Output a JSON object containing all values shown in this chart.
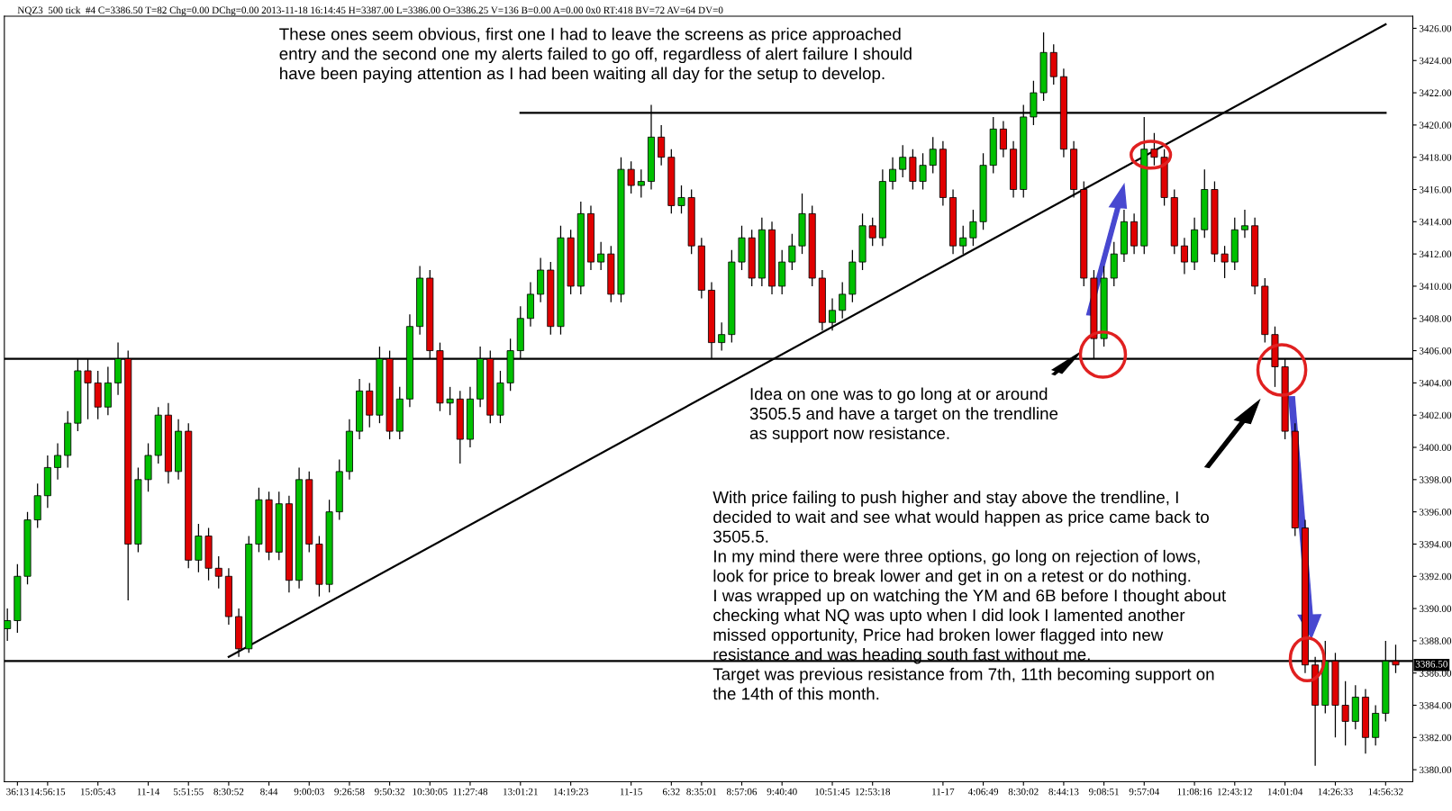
{
  "chart_data": {
    "type": "candlestick",
    "title": "NQZ3  500 tick  #4 C=3386.50 T=82 Chg=0.00 DChg=0.00 2013-11-18 16:14:45 H=3387.00 L=3386.00 O=3386.25 V=136 B=0.00 A=0.00 0x0 RT:418 BV=72 AV=64 DV=0",
    "categories": [
      null,
      "36:13",
      null,
      null,
      "14:56:15",
      null,
      null,
      null,
      null,
      "15:05:43",
      null,
      null,
      null,
      null,
      "11-14",
      null,
      null,
      null,
      "5:51:55",
      null,
      null,
      null,
      "8:30:52",
      null,
      null,
      null,
      "8:44",
      null,
      null,
      null,
      "9:00:03",
      null,
      null,
      null,
      "9:26:58",
      null,
      null,
      null,
      "9:50:32",
      null,
      null,
      null,
      "10:30:05",
      null,
      null,
      null,
      "11:27:48",
      null,
      null,
      null,
      null,
      "13:01:21",
      null,
      null,
      null,
      null,
      "14:19:23",
      null,
      null,
      null,
      null,
      null,
      "11-15",
      null,
      null,
      null,
      "6:32",
      null,
      null,
      "8:35:01",
      null,
      null,
      null,
      "8:57:06",
      null,
      null,
      null,
      "9:40:40",
      null,
      null,
      null,
      null,
      "10:51:45",
      null,
      null,
      null,
      "12:53:18",
      null,
      null,
      null,
      null,
      null,
      null,
      "11-17",
      null,
      null,
      null,
      "4:06:49",
      null,
      null,
      null,
      "8:30:02",
      null,
      null,
      null,
      "8:44:13",
      null,
      null,
      null,
      "9:08:51",
      null,
      null,
      null,
      "9:57:04",
      null,
      null,
      null,
      null,
      "11:08:16",
      null,
      null,
      null,
      "12:43:12",
      null,
      null,
      null,
      null,
      "14:01:04",
      null,
      null,
      null,
      null,
      "14:26:33",
      null,
      null,
      null,
      null,
      "14:56:32",
      null
    ],
    "ohlc": [
      [
        3388.75,
        3390,
        3388,
        3389.25
      ],
      [
        3389.25,
        3392.75,
        3388.5,
        3392
      ],
      [
        3392,
        3396,
        3391.5,
        3395.5
      ],
      [
        3395.5,
        3397.75,
        3395,
        3397
      ],
      [
        3397,
        3399.5,
        3396.25,
        3398.75
      ],
      [
        3398.75,
        3400.25,
        3398,
        3399.5
      ],
      [
        3399.5,
        3402.25,
        3398.75,
        3401.5
      ],
      [
        3401.5,
        3405.5,
        3401,
        3404.75
      ],
      [
        3404.75,
        3405.5,
        3401.75,
        3404
      ],
      [
        3404,
        3404.75,
        3401.75,
        3402.5
      ],
      [
        3402.5,
        3405,
        3402,
        3404
      ],
      [
        3404,
        3406.5,
        3403.25,
        3405.5
      ],
      [
        3405.5,
        3406,
        3390.5,
        3394
      ],
      [
        3394,
        3398.75,
        3393.5,
        3398
      ],
      [
        3398,
        3400.25,
        3397.25,
        3399.5
      ],
      [
        3399.5,
        3402.5,
        3399,
        3402
      ],
      [
        3402,
        3402.75,
        3397.75,
        3398.5
      ],
      [
        3398.5,
        3401.75,
        3398,
        3401
      ],
      [
        3401,
        3401.5,
        3392.5,
        3393
      ],
      [
        3393,
        3395.25,
        3392.25,
        3394.5
      ],
      [
        3394.5,
        3395,
        3391.75,
        3392.5
      ],
      [
        3392.5,
        3393.25,
        3391.25,
        3392
      ],
      [
        3392,
        3392.5,
        3389,
        3389.5
      ],
      [
        3389.5,
        3390,
        3387,
        3387.5
      ],
      [
        3387.5,
        3394.5,
        3387.25,
        3394
      ],
      [
        3394,
        3397.5,
        3393.5,
        3396.75
      ],
      [
        3396.75,
        3397.25,
        3393,
        3393.5
      ],
      [
        3393.5,
        3397.25,
        3393,
        3396.5
      ],
      [
        3396.5,
        3397,
        3391,
        3391.75
      ],
      [
        3391.75,
        3398.75,
        3391.25,
        3398
      ],
      [
        3398,
        3398.5,
        3393.5,
        3394
      ],
      [
        3394,
        3394.5,
        3390.75,
        3391.5
      ],
      [
        3391.5,
        3396.75,
        3391,
        3396
      ],
      [
        3396,
        3399.25,
        3395.5,
        3398.5
      ],
      [
        3398.5,
        3401.75,
        3398,
        3401
      ],
      [
        3401,
        3404.25,
        3400.5,
        3403.5
      ],
      [
        3403.5,
        3404,
        3401.25,
        3402
      ],
      [
        3402,
        3406.25,
        3401.5,
        3405.5
      ],
      [
        3405.5,
        3406,
        3400.5,
        3401
      ],
      [
        3401,
        3403.75,
        3400.5,
        3403
      ],
      [
        3403,
        3408.25,
        3402.5,
        3407.5
      ],
      [
        3407.5,
        3411.25,
        3407,
        3410.5
      ],
      [
        3410.5,
        3411,
        3405.5,
        3406
      ],
      [
        3406,
        3406.5,
        3402.25,
        3402.75
      ],
      [
        3402.75,
        3403.75,
        3402,
        3403
      ],
      [
        3403,
        3403.5,
        3399,
        3400.5
      ],
      [
        3400.5,
        3403.75,
        3400,
        3403
      ],
      [
        3403,
        3406.25,
        3402.5,
        3405.5
      ],
      [
        3405.5,
        3406,
        3401.5,
        3402
      ],
      [
        3402,
        3404.75,
        3401.5,
        3404
      ],
      [
        3404,
        3406.75,
        3403.5,
        3406
      ],
      [
        3406,
        3408.75,
        3405.5,
        3408
      ],
      [
        3408,
        3410.25,
        3407.5,
        3409.5
      ],
      [
        3409.5,
        3411.75,
        3409,
        3411
      ],
      [
        3411,
        3411.5,
        3407,
        3407.5
      ],
      [
        3407.5,
        3413.75,
        3407,
        3413
      ],
      [
        3413,
        3413.5,
        3409.5,
        3410
      ],
      [
        3410,
        3415.25,
        3409.5,
        3414.5
      ],
      [
        3414.5,
        3415,
        3411,
        3411.5
      ],
      [
        3411.5,
        3412.75,
        3411,
        3412
      ],
      [
        3412,
        3412.5,
        3409,
        3409.5
      ],
      [
        3409.5,
        3418,
        3409,
        3417.25
      ],
      [
        3417.25,
        3417.75,
        3415.75,
        3416.25
      ],
      [
        3416.25,
        3417.25,
        3415.5,
        3416.5
      ],
      [
        3416.5,
        3421.25,
        3416,
        3419.25
      ],
      [
        3419.25,
        3420,
        3417.5,
        3418
      ],
      [
        3418,
        3418.5,
        3414.5,
        3415
      ],
      [
        3415,
        3416.25,
        3414.5,
        3415.5
      ],
      [
        3415.5,
        3416,
        3412,
        3412.5
      ],
      [
        3412.5,
        3413,
        3409.25,
        3409.75
      ],
      [
        3409.75,
        3410.25,
        3405.5,
        3406.5
      ],
      [
        3406.5,
        3407.75,
        3406,
        3407
      ],
      [
        3407,
        3412.25,
        3406.5,
        3411.5
      ],
      [
        3411.5,
        3413.75,
        3411,
        3413
      ],
      [
        3413,
        3413.5,
        3410,
        3410.5
      ],
      [
        3410.5,
        3414.25,
        3410,
        3413.5
      ],
      [
        3413.5,
        3414,
        3409.5,
        3410
      ],
      [
        3410,
        3412.25,
        3409.5,
        3411.5
      ],
      [
        3411.5,
        3413.25,
        3411,
        3412.5
      ],
      [
        3412.5,
        3415.75,
        3412,
        3414.5
      ],
      [
        3414.5,
        3415,
        3410,
        3410.5
      ],
      [
        3410.5,
        3411,
        3407.25,
        3407.75
      ],
      [
        3407.75,
        3409.25,
        3407.25,
        3408.5
      ],
      [
        3408.5,
        3410.25,
        3408,
        3409.5
      ],
      [
        3409.5,
        3412.25,
        3409,
        3411.5
      ],
      [
        3411.5,
        3414.5,
        3411,
        3413.75
      ],
      [
        3413.75,
        3414.25,
        3412.5,
        3413
      ],
      [
        3413,
        3417.25,
        3412.5,
        3416.5
      ],
      [
        3416.5,
        3418,
        3416,
        3417.25
      ],
      [
        3417.25,
        3418.75,
        3416.75,
        3418
      ],
      [
        3418,
        3418.5,
        3416,
        3416.5
      ],
      [
        3416.5,
        3418.25,
        3416,
        3417.5
      ],
      [
        3417.5,
        3419.25,
        3417,
        3418.5
      ],
      [
        3418.5,
        3419,
        3415,
        3415.5
      ],
      [
        3415.5,
        3416,
        3412,
        3412.5
      ],
      [
        3412.5,
        3413.75,
        3412,
        3413
      ],
      [
        3413,
        3414.75,
        3412.5,
        3414
      ],
      [
        3414,
        3418.25,
        3413.5,
        3417.5
      ],
      [
        3417.5,
        3420.5,
        3417,
        3419.75
      ],
      [
        3419.75,
        3420.25,
        3418,
        3418.5
      ],
      [
        3418.5,
        3419,
        3415.5,
        3416
      ],
      [
        3416,
        3421.25,
        3415.5,
        3420.5
      ],
      [
        3420.5,
        3422.75,
        3420,
        3422
      ],
      [
        3422,
        3425.75,
        3421.5,
        3424.5
      ],
      [
        3424.5,
        3425,
        3422.5,
        3423
      ],
      [
        3423,
        3423.5,
        3418,
        3418.5
      ],
      [
        3418.5,
        3419,
        3415.5,
        3416
      ],
      [
        3416,
        3416.5,
        3410,
        3410.5
      ],
      [
        3410.5,
        3411,
        3405.5,
        3406.75
      ],
      [
        3406.75,
        3411.25,
        3406.25,
        3410.5
      ],
      [
        3410.5,
        3412.75,
        3410,
        3412
      ],
      [
        3412,
        3414.75,
        3411.5,
        3414
      ],
      [
        3414,
        3414.5,
        3412,
        3412.5
      ],
      [
        3412.5,
        3420.5,
        3412,
        3418.5
      ],
      [
        3418.5,
        3419.5,
        3417.5,
        3418
      ],
      [
        3418,
        3418.5,
        3415,
        3415.5
      ],
      [
        3415.5,
        3416,
        3412,
        3412.5
      ],
      [
        3412.5,
        3413,
        3410.75,
        3411.5
      ],
      [
        3411.5,
        3414.25,
        3411,
        3413.5
      ],
      [
        3413.5,
        3417.25,
        3413,
        3416
      ],
      [
        3416,
        3416.5,
        3411.5,
        3412
      ],
      [
        3412,
        3412.5,
        3410.5,
        3411.5
      ],
      [
        3411.5,
        3414.25,
        3411,
        3413.5
      ],
      [
        3413.5,
        3414.75,
        3413,
        3413.75
      ],
      [
        3413.75,
        3414.25,
        3409.5,
        3410
      ],
      [
        3410,
        3410.5,
        3406.5,
        3407
      ],
      [
        3407,
        3407.5,
        3403.75,
        3405
      ],
      [
        3405,
        3405.5,
        3400.5,
        3401
      ],
      [
        3401,
        3401.5,
        3394.5,
        3395
      ],
      [
        3395,
        3395.5,
        3386,
        3386.5
      ],
      [
        3386.5,
        3387,
        3380.25,
        3384
      ],
      [
        3384,
        3388,
        3383.5,
        3386.75
      ],
      [
        3386.75,
        3387.25,
        3382,
        3384
      ],
      [
        3384,
        3385.5,
        3381.5,
        3383
      ],
      [
        3383,
        3385.25,
        3382.5,
        3384.5
      ],
      [
        3384.5,
        3385,
        3381,
        3382
      ],
      [
        3382,
        3384,
        3381.5,
        3383.5
      ],
      [
        3383.5,
        3388,
        3383,
        3386.75
      ],
      [
        3386.75,
        3387.75,
        3386,
        3386.5
      ]
    ],
    "colors": [
      "#00c000",
      "#00c000",
      "#00c000",
      "#00c000",
      "#00c000",
      "#00c000",
      "#00c000",
      "#00c000",
      "#e00000",
      "#e00000",
      "#00c000",
      "#00c000",
      "#e00000",
      "#00c000",
      "#00c000",
      "#00c000",
      "#e00000",
      "#00c000",
      "#e00000",
      "#00c000",
      "#e00000",
      "#e00000",
      "#e00000",
      "#e00000",
      "#00c000",
      "#00c000",
      "#e00000",
      "#00c000",
      "#e00000",
      "#00c000",
      "#e00000",
      "#e00000",
      "#00c000",
      "#00c000",
      "#00c000",
      "#00c000",
      "#e00000",
      "#00c000",
      "#e00000",
      "#00c000",
      "#00c000",
      "#00c000",
      "#e00000",
      "#e00000",
      "#00c000",
      "#e00000",
      "#00c000",
      "#00c000",
      "#e00000",
      "#00c000",
      "#00c000",
      "#00c000",
      "#00c000",
      "#00c000",
      "#e00000",
      "#00c000",
      "#e00000",
      "#00c000",
      "#e00000",
      "#00c000",
      "#e00000",
      "#00c000",
      "#e00000",
      "#00c000",
      "#00c000",
      "#e00000",
      "#e00000",
      "#00c000",
      "#e00000",
      "#e00000",
      "#e00000",
      "#00c000",
      "#00c000",
      "#00c000",
      "#e00000",
      "#00c000",
      "#e00000",
      "#00c000",
      "#00c000",
      "#00c000",
      "#e00000",
      "#e00000",
      "#00c000",
      "#00c000",
      "#00c000",
      "#00c000",
      "#e00000",
      "#00c000",
      "#00c000",
      "#00c000",
      "#e00000",
      "#00c000",
      "#00c000",
      "#e00000",
      "#e00000",
      "#00c000",
      "#00c000",
      "#00c000",
      "#00c000",
      "#e00000",
      "#e00000",
      "#00c000",
      "#00c000",
      "#00c000",
      "#e00000",
      "#e00000",
      "#e00000",
      "#e00000",
      "#e00000",
      "#00c000",
      "#00c000",
      "#00c000",
      "#e00000",
      "#00c000",
      "#e00000",
      "#e00000",
      "#e00000",
      "#e00000",
      "#00c000",
      "#00c000",
      "#e00000",
      "#e00000",
      "#00c000",
      "#00c000",
      "#e00000",
      "#e00000",
      "#e00000",
      "#e00000",
      "#e00000",
      "#e00000",
      "#e00000",
      "#00c000",
      "#e00000",
      "#e00000",
      "#00c000",
      "#e00000",
      "#00c000",
      "#00c000",
      "#e00000"
    ],
    "series": [
      {
        "type": "line",
        "x": [
          "8:30:52",
          "14:56:32"
        ],
        "values": [
          3387,
          3426.25
        ],
        "color": "#000000"
      },
      {
        "type": "line",
        "x": [
          "13:01:21",
          "14:56:32"
        ],
        "values": [
          3420.75,
          3420.75
        ],
        "color": "#000000"
      }
    ],
    "ref_lines": [
      {
        "axis": "y",
        "value": 3405.5,
        "color": "#000000"
      },
      {
        "axis": "y",
        "value": 3386.75,
        "color": "#000000"
      }
    ],
    "ylim": [
      3379.25,
      3426.75
    ],
    "yticks": [
      {
        "value": 3380,
        "label": "3380.00"
      },
      {
        "value": 3382,
        "label": "3382.00"
      },
      {
        "value": 3384,
        "label": "3384.00"
      },
      {
        "value": 3386,
        "label": "3386.00"
      },
      {
        "value": 3388,
        "label": "3388.00"
      },
      {
        "value": 3390,
        "label": "3390.00"
      },
      {
        "value": 3392,
        "label": "3392.00"
      },
      {
        "value": 3394,
        "label": "3394.00"
      },
      {
        "value": 3396,
        "label": "3396.00"
      },
      {
        "value": 3398,
        "label": "3398.00"
      },
      {
        "value": 3400,
        "label": "3400.00"
      },
      {
        "value": 3402,
        "label": "3402.00"
      },
      {
        "value": 3404,
        "label": "3404.00"
      },
      {
        "value": 3406,
        "label": "3406.00"
      },
      {
        "value": 3408,
        "label": "3408.00"
      },
      {
        "value": 3410,
        "label": "3410.00"
      },
      {
        "value": 3412,
        "label": "3412.00"
      },
      {
        "value": 3414,
        "label": "3414.00"
      },
      {
        "value": 3416,
        "label": "3416.00"
      },
      {
        "value": 3418,
        "label": "3418.00"
      },
      {
        "value": 3420,
        "label": "3420.00"
      },
      {
        "value": 3422,
        "label": "3422.00"
      },
      {
        "value": 3424,
        "label": "3424.00"
      },
      {
        "value": 3426,
        "label": "3426.00"
      }
    ],
    "grid": false,
    "annotations": [
      "These ones seem obvious, first one I had to leave the screens as price approached\nentry and the second one my alerts failed to go off, regardless of alert failure I should\nhave been paying attention as I had been waiting all day for the setup to develop.",
      "Idea on one was to go long at or around\n3505.5 and have a target on the trendline\nas support now resistance.",
      "With price failing to push higher and stay above the trendline, I\ndecided to wait and see what would happen as price came back to\n3505.5.\nIn my mind there were three options, go long on rejection of lows,\nlook for price to break lower and get in on a retest or do nothing.\nI was wrapped up on watching the YM and 6B before I thought about\nchecking what NQ was upto when I did look I lamented another\nmissed opportunity, Price had broken lower flagged into new\nresistance and was heading south fast without me.\nTarget was previous resistance from 7th, 11th becoming support on\nthe 14th of this month.",
      {
        "text": "3386.50",
        "y": 3386.5
      }
    ]
  }
}
